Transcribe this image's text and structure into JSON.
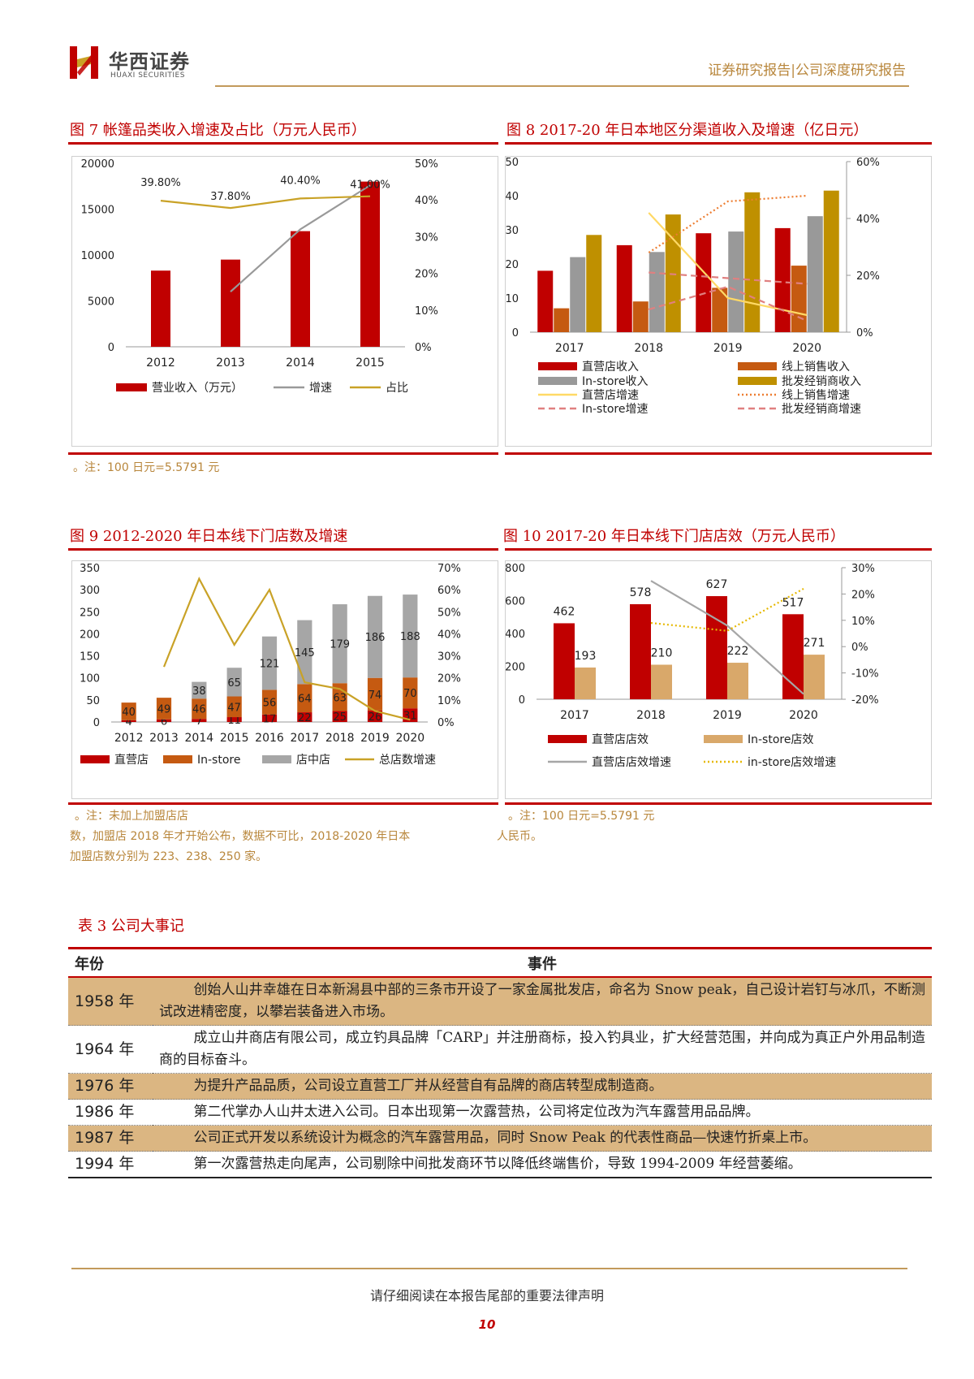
{
  "header": {
    "logo_cn": "华西证券",
    "logo_en": "HUAXI SECURITIES",
    "report_type": "证券研究报告|公司深度研究报告"
  },
  "fig7": {
    "title": "图 7   帐篷品类收入增速及占比（万元人民币）",
    "chart_data": {
      "type": "bar",
      "categories": [
        "2012",
        "2013",
        "2014",
        "2015"
      ],
      "series": [
        {
          "name": "营业收入（万元）",
          "type": "bar",
          "axis": "left",
          "color": "#c00000",
          "values": [
            8300,
            9500,
            12600,
            18000
          ]
        },
        {
          "name": "增速",
          "type": "line",
          "axis": "right",
          "color": "#999999",
          "values": [
            null,
            15,
            32,
            44
          ]
        },
        {
          "name": "占比",
          "type": "line",
          "axis": "right",
          "color": "#c9a227",
          "values": [
            39.8,
            37.8,
            40.4,
            41.0
          ]
        }
      ],
      "data_labels": [
        "39.80%",
        "37.80%",
        "40.40%",
        "41.00%"
      ],
      "yleft_ticks": [
        "0",
        "5000",
        "10000",
        "15000",
        "20000"
      ],
      "yright_ticks": [
        "0%",
        "10%",
        "20%",
        "30%",
        "40%",
        "50%"
      ],
      "ylim_left": [
        0,
        20000
      ],
      "ylim_right": [
        0,
        50
      ],
      "legend_position": "bottom"
    }
  },
  "fig8": {
    "title": "图 8   2017-20 年日本地区分渠道收入及增速（亿日元）",
    "chart_data": {
      "type": "bar",
      "categories": [
        "2017",
        "2018",
        "2019",
        "2020"
      ],
      "series": [
        {
          "name": "直营店收入",
          "type": "bar",
          "axis": "left",
          "color": "#c00000",
          "values": [
            18,
            25.5,
            29,
            30.5
          ]
        },
        {
          "name": "线上销售收入",
          "type": "bar",
          "axis": "left",
          "color": "#c55a11",
          "values": [
            7,
            9,
            13,
            19.5
          ]
        },
        {
          "name": "In-store收入",
          "type": "bar",
          "axis": "left",
          "color": "#999999",
          "values": [
            22,
            23.5,
            29.5,
            34
          ]
        },
        {
          "name": "批发经销商收入",
          "type": "bar",
          "axis": "left",
          "color": "#bf9000",
          "values": [
            28.5,
            34.5,
            41,
            41.5
          ]
        },
        {
          "name": "直营店增速",
          "type": "line",
          "style": "solid",
          "axis": "right",
          "color": "#ffd966",
          "values": [
            null,
            42,
            12,
            6
          ]
        },
        {
          "name": "线上销售增速",
          "type": "line",
          "style": "dotted",
          "axis": "right",
          "color": "#ed7d31",
          "values": [
            null,
            28,
            46,
            48
          ]
        },
        {
          "name": "In-store增速",
          "type": "line",
          "style": "dashed",
          "axis": "right",
          "color": "#e08080",
          "values": [
            null,
            8,
            16,
            4
          ]
        },
        {
          "name": "批发经销商增速",
          "type": "line",
          "style": "dashed",
          "axis": "right",
          "color": "#e08080",
          "values": [
            null,
            21,
            19,
            17
          ]
        }
      ],
      "yleft_ticks": [
        "0",
        "10",
        "20",
        "30",
        "40",
        "50"
      ],
      "yright_ticks": [
        "0%",
        "20%",
        "40%",
        "60%"
      ],
      "ylim_left": [
        0,
        50
      ],
      "ylim_right": [
        0,
        60
      ],
      "legend_position": "bottom"
    }
  },
  "note_fig7_8": "。注：100 日元=5.5791 元",
  "fig9": {
    "title": "图 9 2012-2020 年日本线下门店数及增速",
    "chart_data": {
      "type": "bar",
      "stacked": true,
      "categories": [
        "2012",
        "2013",
        "2014",
        "2015",
        "2016",
        "2017",
        "2018",
        "2019",
        "2020"
      ],
      "series": [
        {
          "name": "直营店",
          "type": "bar",
          "axis": "left",
          "color": "#c00000",
          "values": [
            4,
            6,
            7,
            11,
            17,
            22,
            25,
            26,
            31
          ]
        },
        {
          "name": "In-store",
          "type": "bar",
          "axis": "left",
          "color": "#c55a11",
          "values": [
            40,
            49,
            46,
            47,
            56,
            64,
            63,
            74,
            70
          ]
        },
        {
          "name": "店中店",
          "type": "bar",
          "axis": "left",
          "color": "#a6a6a6",
          "values": [
            0,
            0,
            38,
            65,
            121,
            145,
            179,
            186,
            188
          ]
        },
        {
          "name": "总店数增速",
          "type": "line",
          "axis": "right",
          "color": "#c9a227",
          "values": [
            null,
            25,
            65,
            35,
            60,
            18,
            15,
            5,
            1
          ]
        }
      ],
      "yleft_ticks": [
        "0",
        "50",
        "100",
        "150",
        "200",
        "250",
        "300",
        "350"
      ],
      "yright_ticks": [
        "0%",
        "10%",
        "20%",
        "30%",
        "40%",
        "50%",
        "60%",
        "70%"
      ],
      "ylim_left": [
        0,
        350
      ],
      "ylim_right": [
        0,
        70
      ],
      "legend_position": "bottom"
    }
  },
  "fig10": {
    "title": "图 10 2017-20 年日本线下门店店效（万元人民币）",
    "chart_data": {
      "type": "bar",
      "categories": [
        "2017",
        "2018",
        "2019",
        "2020"
      ],
      "series": [
        {
          "name": "直营店店效",
          "type": "bar",
          "axis": "left",
          "color": "#c00000",
          "values": [
            462,
            578,
            627,
            517
          ]
        },
        {
          "name": "In-store店效",
          "type": "bar",
          "axis": "left",
          "color": "#d9a86a",
          "values": [
            193,
            210,
            222,
            271
          ]
        },
        {
          "name": "直营店店效增速",
          "type": "line",
          "style": "solid",
          "axis": "right",
          "color": "#a6a6a6",
          "values": [
            null,
            25,
            8,
            -18
          ]
        },
        {
          "name": "in-store店效增速",
          "type": "line",
          "style": "dotted",
          "axis": "right",
          "color": "#e6b800",
          "values": [
            null,
            9,
            6,
            22
          ]
        }
      ],
      "yleft_ticks": [
        "0",
        "200",
        "400",
        "600",
        "800"
      ],
      "yright_ticks": [
        "-20%",
        "-10%",
        "0%",
        "10%",
        "20%",
        "30%"
      ],
      "ylim_left": [
        0,
        800
      ],
      "ylim_right": [
        -20,
        30
      ],
      "legend_position": "bottom"
    }
  },
  "note_fig9": {
    "line1": "。注：未加上加盟店店",
    "line2": "数，加盟店 2018 年才开始公布，数据不可比，2018-2020 年日本",
    "line3": "加盟店数分别为 223、238、250 家。"
  },
  "note_fig10": {
    "line1": "。注：100 日元=5.5791 元",
    "line2": "人民币。"
  },
  "table3": {
    "title": "表 3 公司大事记",
    "col_year": "年份",
    "col_event": "事件",
    "rows": [
      {
        "year": "1958 年",
        "event": "创始人山井幸雄在日本新潟县中部的三条市开设了一家金属批发店，命名为 Snow peak，自己设计岩钉与冰爪，不断测试改进精密度，以攀岩装备进入市场。"
      },
      {
        "year": "1964 年",
        "event": "成立山井商店有限公司，成立钓具品牌「CARP」并注册商标，投入钓具业，扩大经营范围，并向成为真正户外用品制造商的目标奋斗。"
      },
      {
        "year": "1976 年",
        "event": "为提升产品品质，公司设立直营工厂并从经营自有品牌的商店转型成制造商。"
      },
      {
        "year": "1986 年",
        "event": "第二代掌办人山井太进入公司。日本出现第一次露营热，公司将定位改为汽车露营用品品牌。"
      },
      {
        "year": "1987 年",
        "event": "公司正式开发以系统设计为概念的汽车露营用品，同时 Snow Peak 的代表性商品—快速竹折桌上市。"
      },
      {
        "year": "1994 年",
        "event": "第一次露营热走向尾声，公司剔除中间批发商环节以降低终端售价，导致 1994-2009 年经营萎缩。"
      }
    ]
  },
  "footer": {
    "disclaimer": "请仔细阅读在本报告尾部的重要法律声明",
    "page": "10"
  }
}
